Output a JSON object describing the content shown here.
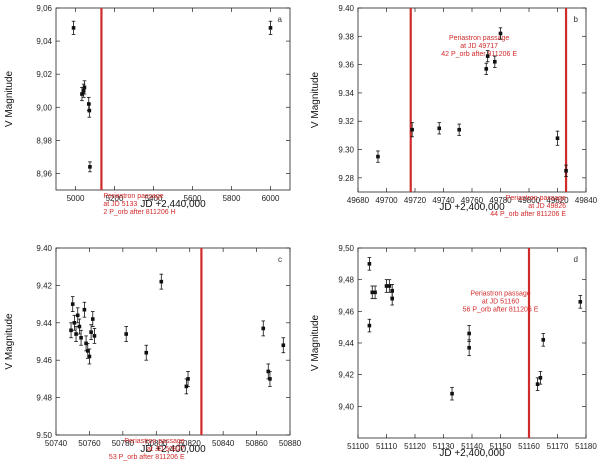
{
  "chart_data": [
    {
      "type": "scatter",
      "panel_label": "a",
      "xlabel": "JD +2,440,000",
      "ylabel": "V Magnitude",
      "xlim": [
        4900,
        6100
      ],
      "ylim": [
        9.06,
        8.95
      ],
      "xticks": [
        5000,
        5200,
        5400,
        5600,
        5800,
        6000
      ],
      "yticks": [
        8.96,
        8.98,
        9.0,
        9.02,
        9.04,
        9.06
      ],
      "xtick_labels": [
        "5000",
        "5200",
        "5400",
        "5600",
        "5800",
        "6000"
      ],
      "ytick_labels": [
        "8,96",
        "8,98",
        "9,00",
        "9,02",
        "9,04",
        "9,06"
      ],
      "points": [
        {
          "x": 4990,
          "y": 9.048,
          "err": 0.004
        },
        {
          "x": 5033,
          "y": 9.008,
          "err": 0.004
        },
        {
          "x": 5042,
          "y": 9.01,
          "err": 0.004
        },
        {
          "x": 5046,
          "y": 9.012,
          "err": 0.004
        },
        {
          "x": 5068,
          "y": 9.002,
          "err": 0.004
        },
        {
          "x": 5071,
          "y": 8.998,
          "err": 0.004
        },
        {
          "x": 5074,
          "y": 8.964,
          "err": 0.003
        },
        {
          "x": 6000,
          "y": 9.048,
          "err": 0.004
        }
      ],
      "vlines": [
        5133
      ],
      "annotation": {
        "x": 5143,
        "y_top": 8.95,
        "lines": [
          "Periastron passage",
          "at JD 5133",
          "2 P_orb after 811206 H"
        ]
      }
    },
    {
      "type": "scatter",
      "panel_label": "b",
      "xlabel": "JD +2,400,000",
      "ylabel": "V Magnitude",
      "xlim": [
        49680,
        49840
      ],
      "ylim": [
        9.4,
        9.27
      ],
      "xticks": [
        49680,
        49700,
        49720,
        49740,
        49760,
        49780,
        49800,
        49820,
        49840
      ],
      "yticks": [
        9.28,
        9.3,
        9.32,
        9.34,
        9.36,
        9.38,
        9.4
      ],
      "xtick_labels": [
        "49680",
        "49700",
        "49720",
        "49740",
        "49760",
        "49780",
        "49800",
        "49820",
        "49840"
      ],
      "ytick_labels": [
        "9.28",
        "9.30",
        "9.32",
        "9.34",
        "9.36",
        "9.38",
        "9.40"
      ],
      "points": [
        {
          "x": 49694,
          "y": 9.295,
          "err": 0.004
        },
        {
          "x": 49718,
          "y": 9.314,
          "err": 0.005
        },
        {
          "x": 49737,
          "y": 9.315,
          "err": 0.004
        },
        {
          "x": 49751,
          "y": 9.314,
          "err": 0.004
        },
        {
          "x": 49770,
          "y": 9.357,
          "err": 0.004
        },
        {
          "x": 49771,
          "y": 9.366,
          "err": 0.004
        },
        {
          "x": 49776,
          "y": 9.362,
          "err": 0.004
        },
        {
          "x": 49780,
          "y": 9.382,
          "err": 0.004
        },
        {
          "x": 49820,
          "y": 9.308,
          "err": 0.005
        },
        {
          "x": 49826,
          "y": 9.285,
          "err": 0.004
        }
      ],
      "vlines": [
        49717,
        49826
      ],
      "annotations": [
        {
          "x": 49826,
          "y_top": 9.27,
          "lines": [
            "Periastron passage",
            "at JD 49826",
            "44 P_orb after 811206 E"
          ],
          "align": "end"
        },
        {
          "x": 49765,
          "y_top": 9.383,
          "lines": [
            "Periastron passage",
            "at JD 49717",
            "42 P_orb after 811206 E"
          ],
          "align": "middle"
        }
      ]
    },
    {
      "type": "scatter",
      "panel_label": "c",
      "xlabel": "JD +2,400,000",
      "ylabel": "V Magnitude",
      "xlim": [
        50740,
        50880
      ],
      "ylim": [
        9.4,
        9.5
      ],
      "xticks": [
        50740,
        50760,
        50780,
        50800,
        50820,
        50840,
        50860,
        50880
      ],
      "yticks": [
        9.4,
        9.42,
        9.44,
        9.46,
        9.48,
        9.5
      ],
      "xtick_labels": [
        "50740",
        "50760",
        "50780",
        "50800",
        "50820",
        "50840",
        "50860",
        "50880"
      ],
      "ytick_labels": [
        "9.40",
        "9.42",
        "9.44",
        "9.46",
        "9.48",
        "9.50"
      ],
      "points": [
        {
          "x": 50749,
          "y": 9.444,
          "err": 0.004
        },
        {
          "x": 50750,
          "y": 9.43,
          "err": 0.004
        },
        {
          "x": 50751,
          "y": 9.44,
          "err": 0.004
        },
        {
          "x": 50752,
          "y": 9.446,
          "err": 0.004
        },
        {
          "x": 50753,
          "y": 9.436,
          "err": 0.004
        },
        {
          "x": 50754,
          "y": 9.442,
          "err": 0.004
        },
        {
          "x": 50755,
          "y": 9.448,
          "err": 0.004
        },
        {
          "x": 50757,
          "y": 9.433,
          "err": 0.004
        },
        {
          "x": 50758,
          "y": 9.451,
          "err": 0.004
        },
        {
          "x": 50759,
          "y": 9.455,
          "err": 0.004
        },
        {
          "x": 50760,
          "y": 9.458,
          "err": 0.004
        },
        {
          "x": 50761,
          "y": 9.445,
          "err": 0.004
        },
        {
          "x": 50762,
          "y": 9.438,
          "err": 0.004
        },
        {
          "x": 50763,
          "y": 9.447,
          "err": 0.004
        },
        {
          "x": 50782,
          "y": 9.446,
          "err": 0.004
        },
        {
          "x": 50794,
          "y": 9.456,
          "err": 0.004
        },
        {
          "x": 50803,
          "y": 9.418,
          "err": 0.004
        },
        {
          "x": 50818,
          "y": 9.474,
          "err": 0.004
        },
        {
          "x": 50819,
          "y": 9.47,
          "err": 0.004
        },
        {
          "x": 50864,
          "y": 9.443,
          "err": 0.004
        },
        {
          "x": 50867,
          "y": 9.466,
          "err": 0.004
        },
        {
          "x": 50868,
          "y": 9.47,
          "err": 0.004
        },
        {
          "x": 50876,
          "y": 9.452,
          "err": 0.004
        }
      ],
      "vlines": [
        50827
      ],
      "annotation": {
        "x": 50817,
        "y_top": 9.5,
        "lines": [
          "Periastron passage",
          "at JD 50827",
          "53 P_orb after 811206 E"
        ],
        "align": "end"
      }
    },
    {
      "type": "scatter",
      "panel_label": "d",
      "xlabel": "JD +2,400,000",
      "ylabel": "V Magnitude",
      "xlim": [
        51100,
        51180
      ],
      "ylim": [
        9.5,
        9.38
      ],
      "xticks": [
        51100,
        51110,
        51120,
        51130,
        51140,
        51150,
        51160,
        51170,
        51180
      ],
      "yticks": [
        9.4,
        9.42,
        9.44,
        9.46,
        9.48,
        9.5
      ],
      "xtick_labels": [
        "51100",
        "51110",
        "51120",
        "51130",
        "51140",
        "51150",
        "51160",
        "51170",
        "51180"
      ],
      "ytick_labels": [
        "9,40",
        "9,42",
        "9,44",
        "9,46",
        "9,48",
        "9,50"
      ],
      "points": [
        {
          "x": 51104,
          "y": 9.451,
          "err": 0.004
        },
        {
          "x": 51104,
          "y": 9.49,
          "err": 0.004
        },
        {
          "x": 51105,
          "y": 9.472,
          "err": 0.004
        },
        {
          "x": 51106,
          "y": 9.472,
          "err": 0.004
        },
        {
          "x": 51110,
          "y": 9.476,
          "err": 0.004
        },
        {
          "x": 51111,
          "y": 9.476,
          "err": 0.004
        },
        {
          "x": 51112,
          "y": 9.468,
          "err": 0.004
        },
        {
          "x": 51112,
          "y": 9.473,
          "err": 0.004
        },
        {
          "x": 51133,
          "y": 9.408,
          "err": 0.004
        },
        {
          "x": 51139,
          "y": 9.437,
          "err": 0.005
        },
        {
          "x": 51139,
          "y": 9.446,
          "err": 0.005
        },
        {
          "x": 51163,
          "y": 9.414,
          "err": 0.004
        },
        {
          "x": 51164,
          "y": 9.418,
          "err": 0.004
        },
        {
          "x": 51165,
          "y": 9.442,
          "err": 0.004
        },
        {
          "x": 51178,
          "y": 9.466,
          "err": 0.004
        }
      ],
      "vlines": [
        51160
      ],
      "annotation": {
        "x": 51150,
        "y_top": 9.475,
        "lines": [
          "Periastron passage",
          "at JD 51160",
          "56 P_orb after 811206 E"
        ],
        "align": "middle"
      }
    }
  ],
  "colors": {
    "accent": "#d12a2a",
    "marker": "#111111"
  }
}
